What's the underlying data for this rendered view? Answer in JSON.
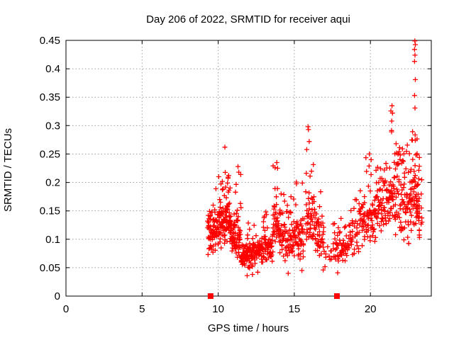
{
  "chart_data": {
    "type": "scatter",
    "title": "Day 206 of 2022, SRMTID for receiver aqui",
    "xlabel": "GPS time / hours",
    "ylabel": "SRMTID / TECUs",
    "xlim": [
      0,
      24
    ],
    "ylim": [
      0,
      0.45
    ],
    "xticks": [
      0,
      5,
      10,
      15,
      20
    ],
    "yticks": [
      0,
      0.05,
      0.1,
      0.15,
      0.2,
      0.25,
      0.3,
      0.35,
      0.4,
      0.45
    ],
    "grid": true,
    "grid_style": "dotted",
    "legend": "none",
    "marker": "plus",
    "marker_color": "#ff0000",
    "grid_color": "#9e9e9e",
    "border_color": "#000000",
    "background_color": "#ffffff",
    "seed": 20220206,
    "series_name": "SRMTID",
    "zero_marker_x": [
      9.5,
      17.8
    ],
    "clusters": [
      {
        "x": [
          9.3,
          10.0
        ],
        "n": 75,
        "band": [
          0.072,
          0.16
        ],
        "max": 0.19,
        "tail": 0.12
      },
      {
        "x": [
          10.0,
          10.45
        ],
        "n": 55,
        "band": [
          0.078,
          0.17
        ],
        "max": 0.215,
        "tail": 0.15
      },
      {
        "x": [
          10.45,
          10.8
        ],
        "n": 48,
        "band": [
          0.08,
          0.185
        ],
        "max": 0.22,
        "tail": 0.15
      },
      {
        "x": [
          10.8,
          11.1
        ],
        "n": 38,
        "band": [
          0.065,
          0.14
        ],
        "max": 0.175,
        "tail": 0.12
      },
      {
        "x": [
          11.1,
          11.5
        ],
        "n": 45,
        "band": [
          0.06,
          0.15
        ],
        "max": 0.228,
        "tail": 0.13
      },
      {
        "x": [
          11.5,
          12.3
        ],
        "n": 85,
        "band": [
          0.045,
          0.1
        ],
        "max": 0.13,
        "tail": 0.1
      },
      {
        "x": [
          12.3,
          13.0
        ],
        "n": 65,
        "band": [
          0.05,
          0.105
        ],
        "max": 0.14,
        "tail": 0.1
      },
      {
        "x": [
          13.0,
          13.6
        ],
        "n": 50,
        "band": [
          0.058,
          0.12
        ],
        "max": 0.155,
        "tail": 0.1
      },
      {
        "x": [
          13.6,
          14.1
        ],
        "n": 45,
        "band": [
          0.07,
          0.165
        ],
        "max": 0.235,
        "tail": 0.18
      },
      {
        "x": [
          14.1,
          15.0
        ],
        "n": 70,
        "band": [
          0.055,
          0.145
        ],
        "max": 0.18,
        "tail": 0.12
      },
      {
        "x": [
          15.0,
          15.65
        ],
        "n": 52,
        "band": [
          0.06,
          0.15
        ],
        "max": 0.225,
        "tail": 0.13
      },
      {
        "x": [
          15.75,
          16.3
        ],
        "n": 48,
        "band": [
          0.08,
          0.2
        ],
        "max": 0.3,
        "tail": 0.15
      },
      {
        "x": [
          16.3,
          16.95
        ],
        "n": 45,
        "band": [
          0.065,
          0.155
        ],
        "max": 0.185,
        "tail": 0.1
      },
      {
        "x": [
          16.95,
          17.55
        ],
        "n": 10,
        "band": [
          0.05,
          0.09
        ],
        "max": 0.1,
        "tail": 0.1
      },
      {
        "x": [
          17.55,
          18.65
        ],
        "n": 65,
        "band": [
          0.055,
          0.12
        ],
        "max": 0.142,
        "tail": 0.1
      },
      {
        "x": [
          18.65,
          19.25
        ],
        "n": 30,
        "band": [
          0.065,
          0.15
        ],
        "max": 0.17,
        "tail": 0.1
      },
      {
        "x": [
          19.25,
          20.3
        ],
        "n": 75,
        "band": [
          0.08,
          0.185
        ],
        "max": 0.25,
        "tail": 0.12
      },
      {
        "x": [
          20.3,
          21.2
        ],
        "n": 70,
        "band": [
          0.1,
          0.22
        ],
        "max": 0.255,
        "tail": 0.12
      },
      {
        "x": [
          21.2,
          21.65
        ],
        "n": 38,
        "band": [
          0.11,
          0.25
        ],
        "max": 0.335,
        "tail": 0.15
      },
      {
        "x": [
          21.65,
          22.6
        ],
        "n": 80,
        "band": [
          0.085,
          0.23
        ],
        "max": 0.27,
        "tail": 0.12
      },
      {
        "x": [
          22.6,
          23.1
        ],
        "n": 55,
        "band": [
          0.1,
          0.27
        ],
        "max": 0.3,
        "tail": 0.12
      },
      {
        "x": [
          23.05,
          23.4
        ],
        "n": 30,
        "band": [
          0.09,
          0.22
        ],
        "max": 0.26,
        "tail": 0.12
      }
    ],
    "extra_points": [
      [
        10.44,
        0.262
      ],
      [
        15.9,
        0.298
      ],
      [
        15.93,
        0.293
      ],
      [
        15.98,
        0.272
      ],
      [
        13.85,
        0.235
      ],
      [
        13.9,
        0.225
      ],
      [
        11.3,
        0.228
      ],
      [
        11.35,
        0.218
      ],
      [
        21.42,
        0.335
      ],
      [
        21.45,
        0.322
      ],
      [
        21.4,
        0.308
      ],
      [
        22.92,
        0.449
      ],
      [
        22.95,
        0.4425
      ],
      [
        22.9,
        0.434
      ],
      [
        22.93,
        0.424
      ],
      [
        22.9,
        0.413
      ],
      [
        22.95,
        0.381
      ],
      [
        22.9,
        0.353
      ],
      [
        22.93,
        0.331
      ],
      [
        19.93,
        0.25
      ],
      [
        20.05,
        0.24
      ],
      [
        11.9,
        0.036
      ],
      [
        12.25,
        0.038
      ],
      [
        12.6,
        0.042
      ],
      [
        14.6,
        0.04
      ],
      [
        15.5,
        0.045
      ],
      [
        16.9,
        0.046
      ],
      [
        17.85,
        0.041
      ]
    ]
  }
}
